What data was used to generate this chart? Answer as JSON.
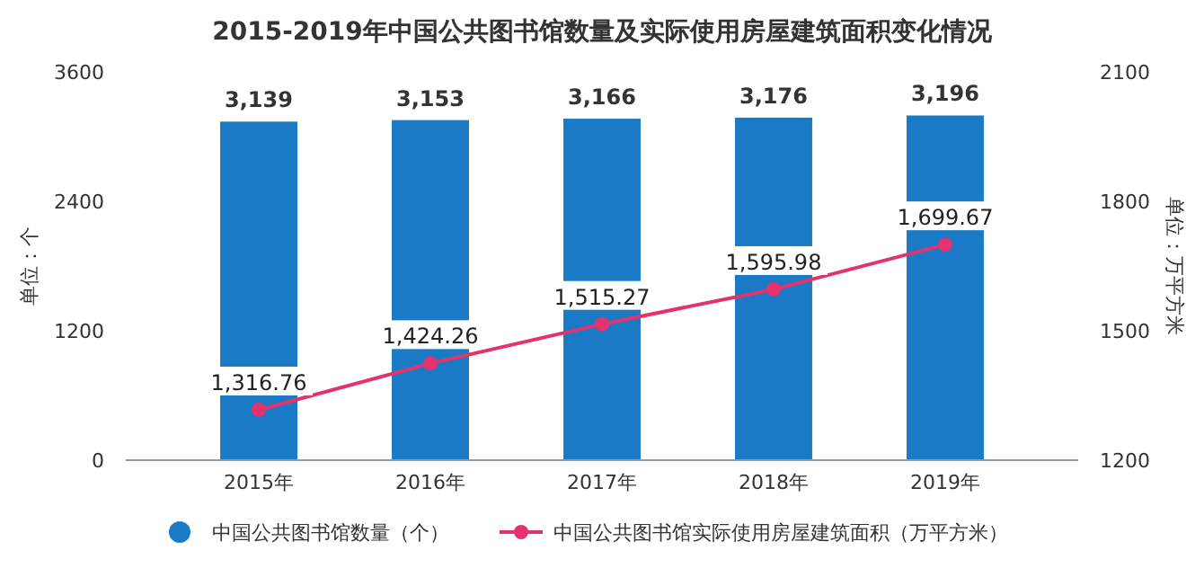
{
  "chart_data": {
    "type": "bar",
    "title": "2015-2019年中国公共图书馆数量及实际使用房屋建筑面积变化情况",
    "categories": [
      "2015年",
      "2016年",
      "2017年",
      "2018年",
      "2019年"
    ],
    "series": [
      {
        "name": "中国公共图书馆数量（个）",
        "color": "#1a7ac6",
        "values": [
          3139,
          3153,
          3166,
          3176,
          3196
        ],
        "value_labels": [
          "3,139",
          "3,153",
          "3,166",
          "3,176",
          "3,196"
        ]
      },
      {
        "name": "中国公共图书馆实际使用房屋建筑面积（万平方米）",
        "type": "line",
        "axis": "y2",
        "color": "#e4326c",
        "values": [
          1316.76,
          1424.26,
          1515.27,
          1595.98,
          1699.67
        ],
        "value_labels": [
          "1,316.76",
          "1,424.26",
          "1,515.27",
          "1,595.98",
          "1,699.67"
        ]
      }
    ],
    "ylim": [
      0,
      3600
    ],
    "yticks": [
      0,
      1200,
      2400,
      3600
    ],
    "y2lim": [
      1200,
      2100
    ],
    "y2ticks": [
      1200,
      1500,
      1800,
      2100
    ],
    "ylabel": "单位：个",
    "y2label": "单位：万平方米",
    "legend": "bottom",
    "marker": "circle",
    "grid": false
  }
}
